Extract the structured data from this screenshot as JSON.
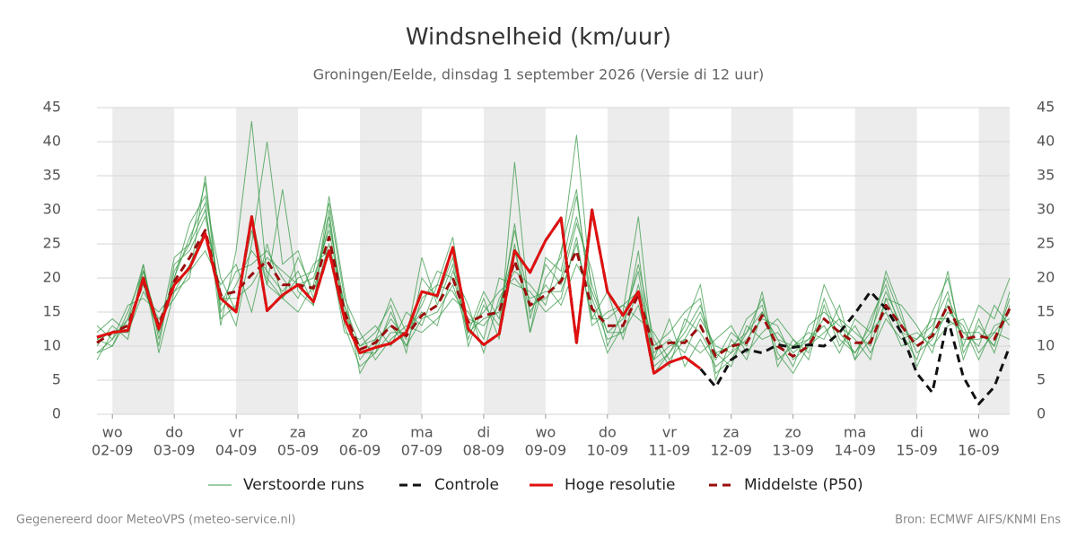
{
  "chart_data": {
    "type": "line",
    "title": "Windsnelheid (km/uur)",
    "subtitle": "Groningen/Eelde, dinsdag  1 september 2026 (Versie di 12 uur)",
    "footer_left": "Gegenereerd door MeteoVPS (meteo-service.nl)",
    "footer_right": "Bron: ECMWF AIFS/KNMI Ens",
    "xlim": [
      -0.25,
      14.5
    ],
    "xticks": [
      {
        "value": 0,
        "label": "wo",
        "sublabel": "02-09"
      },
      {
        "value": 1,
        "label": "do",
        "sublabel": "03-09"
      },
      {
        "value": 2,
        "label": "vr",
        "sublabel": "04-09"
      },
      {
        "value": 3,
        "label": "za",
        "sublabel": "05-09"
      },
      {
        "value": 4,
        "label": "zo",
        "sublabel": "06-09"
      },
      {
        "value": 5,
        "label": "ma",
        "sublabel": "07-09"
      },
      {
        "value": 6,
        "label": "di",
        "sublabel": "08-09"
      },
      {
        "value": 7,
        "label": "wo",
        "sublabel": "09-09"
      },
      {
        "value": 8,
        "label": "do",
        "sublabel": "10-09"
      },
      {
        "value": 9,
        "label": "vr",
        "sublabel": "11-09"
      },
      {
        "value": 10,
        "label": "za",
        "sublabel": "12-09"
      },
      {
        "value": 11,
        "label": "zo",
        "sublabel": "13-09"
      },
      {
        "value": 12,
        "label": "ma",
        "sublabel": "14-09"
      },
      {
        "value": 13,
        "label": "di",
        "sublabel": "15-09"
      },
      {
        "value": 14,
        "label": "wo",
        "sublabel": "16-09"
      }
    ],
    "ylim": [
      0,
      45
    ],
    "yticks": [
      0,
      5,
      10,
      15,
      20,
      25,
      30,
      35,
      40,
      45
    ],
    "y2lim": [
      0,
      45
    ],
    "y2ticks": [
      0,
      5,
      10,
      15,
      20,
      25,
      30,
      35,
      40,
      45
    ],
    "grid": true,
    "legend": "bottom",
    "x": [
      -0.25,
      0,
      0.25,
      0.5,
      0.75,
      1,
      1.25,
      1.5,
      1.75,
      2,
      2.25,
      2.5,
      2.75,
      3,
      3.25,
      3.5,
      3.75,
      4,
      4.25,
      4.5,
      4.75,
      5,
      5.25,
      5.5,
      5.75,
      6,
      6.25,
      6.5,
      6.75,
      7,
      7.25,
      7.5,
      7.75,
      8,
      8.25,
      8.5,
      8.75,
      9,
      9.25,
      9.5,
      9.75,
      10,
      10.25,
      10.5,
      10.75,
      11,
      11.25,
      11.5,
      11.75,
      12,
      12.25,
      12.5,
      12.75,
      13,
      13.25,
      13.5,
      13.75,
      14,
      14.25,
      14.5
    ],
    "ensemble": {
      "name": "Verstoorde runs",
      "color": "#3a9a48",
      "members": [
        [
          9,
          11,
          14,
          22,
          11,
          21,
          25,
          34,
          14,
          16,
          27,
          19,
          33,
          18,
          16,
          30,
          13,
          7,
          9,
          15,
          10,
          17,
          19,
          26,
          12,
          18,
          14,
          28,
          12,
          20,
          23,
          41,
          17,
          11,
          12,
          24,
          6,
          9,
          13,
          19,
          6,
          8,
          12,
          17,
          9,
          6,
          10,
          19,
          14,
          8,
          11,
          21,
          15,
          7,
          12,
          21,
          9,
          13,
          10,
          18
        ],
        [
          12,
          14,
          12,
          18,
          14,
          17,
          21,
          24,
          19,
          22,
          15,
          25,
          17,
          20,
          21,
          31,
          17,
          12,
          8,
          11,
          13,
          12,
          14,
          17,
          15,
          11,
          20,
          19,
          18,
          15,
          17,
          26,
          13,
          15,
          16,
          14,
          12,
          8,
          11,
          9,
          11,
          13,
          9,
          12,
          14,
          11,
          8,
          16,
          10,
          13,
          9,
          14,
          11,
          12,
          10,
          13,
          14,
          9,
          12,
          11
        ],
        [
          11,
          10,
          15,
          21,
          12,
          20,
          26,
          31,
          13,
          24,
          43,
          20,
          17,
          15,
          19,
          29,
          14,
          10,
          12,
          16,
          9,
          20,
          17,
          23,
          11,
          17,
          11,
          37,
          14,
          22,
          19,
          28,
          21,
          10,
          15,
          29,
          8,
          14,
          7,
          11,
          7,
          9,
          14,
          16,
          8,
          10,
          12,
          11,
          16,
          8,
          14,
          19,
          12,
          8,
          15,
          20,
          10,
          16,
          14,
          20
        ],
        [
          8,
          12,
          13,
          20,
          10,
          22,
          24,
          29,
          18,
          13,
          25,
          40,
          22,
          24,
          17,
          25,
          16,
          8,
          11,
          17,
          12,
          15,
          13,
          21,
          16,
          9,
          17,
          21,
          19,
          16,
          24,
          33,
          14,
          18,
          11,
          19,
          10,
          12,
          15,
          17,
          5,
          11,
          8,
          15,
          11,
          7,
          13,
          15,
          13,
          11,
          8,
          17,
          16,
          13,
          9,
          17,
          12,
          10,
          16,
          13
        ],
        [
          13,
          11,
          16,
          17,
          15,
          18,
          22,
          27,
          16,
          21,
          22,
          24,
          20,
          17,
          22,
          24,
          12,
          11,
          13,
          10,
          15,
          13,
          19,
          18,
          14,
          13,
          16,
          24,
          15,
          19,
          16,
          22,
          18,
          12,
          14,
          21,
          7,
          9,
          12,
          16,
          9,
          7,
          13,
          11,
          12,
          9,
          11,
          13,
          9,
          14,
          12,
          15,
          10,
          11,
          13,
          18,
          8,
          14,
          9,
          16
        ],
        [
          10,
          13,
          11,
          22,
          9,
          18,
          20,
          35,
          15,
          19,
          24,
          21,
          18,
          21,
          16,
          32,
          18,
          6,
          10,
          14,
          11,
          23,
          16,
          22,
          10,
          16,
          13,
          25,
          12,
          23,
          21,
          32,
          16,
          9,
          13,
          22,
          11,
          7,
          14,
          12,
          8,
          12,
          10,
          18,
          7,
          11,
          9,
          17,
          11,
          9,
          13,
          20,
          14,
          9,
          11,
          15,
          13,
          8,
          13,
          14
        ],
        [
          9,
          10,
          14,
          19,
          12,
          23,
          25,
          30,
          17,
          17,
          19,
          23,
          21,
          19,
          20,
          27,
          15,
          9,
          9,
          12,
          12,
          16,
          21,
          20,
          13,
          15,
          18,
          20,
          17,
          18,
          18,
          25,
          14,
          14,
          16,
          18,
          9,
          11,
          9,
          14,
          10,
          9,
          11,
          14,
          13,
          8,
          10,
          12,
          14,
          12,
          10,
          17,
          12,
          11,
          14,
          14,
          12,
          12,
          10,
          17
        ],
        [
          11,
          12,
          12,
          21,
          13,
          20,
          28,
          32,
          20,
          15,
          29,
          19,
          17,
          23,
          18,
          28,
          16,
          10,
          11,
          13,
          10,
          14,
          15,
          19,
          12,
          14,
          15,
          27,
          16,
          17,
          20,
          29,
          19,
          12,
          12,
          16,
          8,
          10,
          11,
          15,
          9,
          10,
          12,
          15,
          11,
          10,
          11,
          14,
          12,
          9,
          12,
          18,
          13,
          10,
          12,
          16,
          11,
          11,
          12,
          15
        ]
      ]
    },
    "series": [
      {
        "name": "Controle",
        "color": "#111111",
        "style": "dashed",
        "values": [
          11.3,
          12,
          12.3,
          20,
          12.5,
          19,
          21.5,
          26.5,
          17,
          15,
          29,
          15.2,
          17.5,
          19,
          16.5,
          24,
          14,
          9,
          9.8,
          10.4,
          12,
          18,
          17.4,
          24.5,
          12.5,
          10.2,
          11.8,
          24,
          20.8,
          25.5,
          28.8,
          10.5,
          30,
          18,
          14.5,
          18,
          6,
          7.6,
          8.4,
          6.7,
          4,
          8,
          9.5,
          9,
          10.2,
          9.8,
          10.2,
          10,
          12,
          14.8,
          18,
          15.5,
          12,
          6,
          3.2,
          14,
          5.5,
          1.5,
          4,
          10
        ]
      },
      {
        "name": "Hoge resolutie",
        "color": "#e01010",
        "style": "solid",
        "values": [
          11.3,
          12,
          12.3,
          20,
          12.5,
          19,
          21.5,
          26.5,
          17,
          15,
          29,
          15.2,
          17.5,
          19,
          16.5,
          24,
          14,
          9,
          9.8,
          10.4,
          12,
          18,
          17.4,
          24.5,
          12.5,
          10.2,
          11.8,
          24,
          20.8,
          25.5,
          28.8,
          10.5,
          30,
          18,
          14.5,
          18,
          6,
          7.6,
          8.4,
          6.7,
          null,
          null,
          null,
          null,
          null,
          null,
          null,
          null,
          null,
          null,
          null,
          null,
          null,
          null,
          null,
          null,
          null,
          null,
          null,
          null
        ]
      },
      {
        "name": "Middelste (P50)",
        "color": "#9b0d0d",
        "style": "dashed",
        "values": [
          10.5,
          12,
          13,
          19.5,
          13,
          19.5,
          23,
          27,
          17.5,
          18,
          20.5,
          22.5,
          19,
          19,
          18.5,
          26,
          15,
          9.5,
          10.5,
          13,
          11.5,
          14.5,
          16,
          20,
          13.5,
          14.5,
          15,
          22.5,
          16,
          17.5,
          19.5,
          24,
          15.5,
          13,
          13,
          17.5,
          9.5,
          10.5,
          10.5,
          13,
          8.5,
          10,
          10.5,
          14.5,
          10,
          8.5,
          10,
          14,
          12,
          10.5,
          10.5,
          16,
          13,
          10,
          11.5,
          16,
          11,
          11.5,
          11,
          15.5
        ]
      }
    ]
  }
}
